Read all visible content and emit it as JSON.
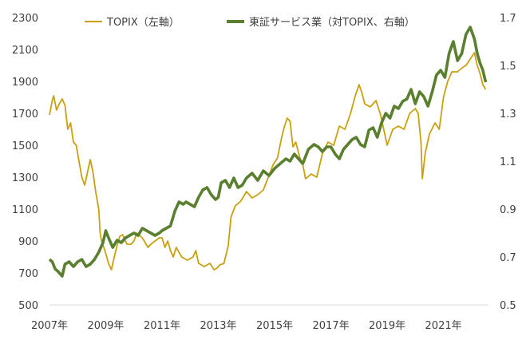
{
  "chart_data": {
    "type": "line",
    "title": "",
    "xlabel": "",
    "colors": {
      "topix": "#C9A010",
      "service": "#5A7F2E",
      "axis": "#D9D9D9",
      "text": "#404040"
    },
    "x_ticks": [
      "2007年",
      "2009年",
      "2011年",
      "2013年",
      "2015年",
      "2017年",
      "2019年",
      "2021年"
    ],
    "x_tick_values": [
      2007,
      2009,
      2011,
      2013,
      2015,
      2017,
      2019,
      2021
    ],
    "xlim": [
      2007,
      2022.6
    ],
    "y_left": {
      "label": "",
      "ticks": [
        "2300",
        "2100",
        "1900",
        "1700",
        "1500",
        "1300",
        "1100",
        "900",
        "700",
        "500"
      ],
      "range": [
        500,
        2300
      ]
    },
    "y_right": {
      "label": "",
      "ticks": [
        "1.7",
        "1.5",
        "1.3",
        "1.1",
        "0.9",
        "0.7",
        "0.5"
      ],
      "range": [
        0.5,
        1.7
      ]
    },
    "legend": {
      "position": "top",
      "entries": [
        "TOPIX（左軸）",
        "東証サービス業（対TOPIX、右軸）"
      ]
    },
    "series": [
      {
        "name": "TOPIX（左軸）",
        "axis": "left",
        "x": [
          2007.0,
          2007.1,
          2007.15,
          2007.25,
          2007.35,
          2007.45,
          2007.55,
          2007.65,
          2007.75,
          2007.85,
          2007.95,
          2008.05,
          2008.15,
          2008.25,
          2008.35,
          2008.45,
          2008.55,
          2008.6,
          2008.65,
          2008.75,
          2008.8,
          2008.85,
          2008.95,
          2009.05,
          2009.1,
          2009.2,
          2009.3,
          2009.4,
          2009.5,
          2009.6,
          2009.75,
          2009.9,
          2010.0,
          2010.1,
          2010.3,
          2010.5,
          2010.6,
          2010.75,
          2010.9,
          2011.0,
          2011.1,
          2011.2,
          2011.3,
          2011.4,
          2011.5,
          2011.6,
          2011.7,
          2011.9,
          2012.1,
          2012.2,
          2012.3,
          2012.5,
          2012.7,
          2012.85,
          2012.95,
          2013.05,
          2013.2,
          2013.35,
          2013.45,
          2013.6,
          2013.8,
          2014.0,
          2014.2,
          2014.4,
          2014.6,
          2014.8,
          2014.95,
          2015.1,
          2015.25,
          2015.35,
          2015.45,
          2015.55,
          2015.65,
          2015.75,
          2015.9,
          2016.0,
          2016.1,
          2016.3,
          2016.5,
          2016.7,
          2016.9,
          2017.1,
          2017.3,
          2017.5,
          2017.7,
          2017.85,
          2018.0,
          2018.1,
          2018.2,
          2018.4,
          2018.6,
          2018.75,
          2018.9,
          2019.0,
          2019.2,
          2019.4,
          2019.6,
          2019.8,
          2020.0,
          2020.1,
          2020.2,
          2020.25,
          2020.35,
          2020.5,
          2020.7,
          2020.85,
          2021.0,
          2021.15,
          2021.3,
          2021.5,
          2021.7,
          2021.8,
          2021.95,
          2022.1,
          2022.2,
          2022.3,
          2022.4,
          2022.5
        ],
        "values": [
          1690,
          1780,
          1810,
          1720,
          1760,
          1790,
          1750,
          1600,
          1640,
          1520,
          1500,
          1400,
          1300,
          1250,
          1330,
          1410,
          1330,
          1260,
          1200,
          1100,
          950,
          900,
          850,
          790,
          760,
          720,
          800,
          870,
          930,
          940,
          880,
          880,
          900,
          950,
          920,
          860,
          880,
          900,
          920,
          920,
          860,
          900,
          840,
          800,
          860,
          830,
          800,
          780,
          800,
          840,
          760,
          740,
          760,
          720,
          730,
          750,
          760,
          870,
          1050,
          1120,
          1150,
          1210,
          1170,
          1190,
          1220,
          1310,
          1380,
          1420,
          1550,
          1620,
          1670,
          1650,
          1490,
          1520,
          1420,
          1380,
          1290,
          1320,
          1300,
          1450,
          1520,
          1500,
          1620,
          1600,
          1700,
          1800,
          1880,
          1830,
          1760,
          1740,
          1780,
          1700,
          1580,
          1500,
          1600,
          1620,
          1600,
          1700,
          1730,
          1700,
          1520,
          1290,
          1450,
          1570,
          1640,
          1600,
          1800,
          1900,
          1960,
          1960,
          1990,
          2000,
          2040,
          2080,
          2000,
          1950,
          1880,
          1850
        ]
      },
      {
        "name": "東証サービス業（対TOPIX、右軸）",
        "axis": "right",
        "x": [
          2007.0,
          2007.1,
          2007.2,
          2007.3,
          2007.45,
          2007.55,
          2007.7,
          2007.85,
          2008.0,
          2008.15,
          2008.3,
          2008.45,
          2008.6,
          2008.75,
          2008.9,
          2009.0,
          2009.1,
          2009.25,
          2009.4,
          2009.55,
          2009.7,
          2009.85,
          2010.0,
          2010.15,
          2010.3,
          2010.45,
          2010.6,
          2010.75,
          2010.9,
          2011.0,
          2011.15,
          2011.3,
          2011.45,
          2011.6,
          2011.75,
          2011.85,
          2012.0,
          2012.15,
          2012.3,
          2012.45,
          2012.6,
          2012.75,
          2012.9,
          2013.0,
          2013.1,
          2013.25,
          2013.4,
          2013.55,
          2013.7,
          2013.85,
          2014.0,
          2014.2,
          2014.4,
          2014.6,
          2014.8,
          2015.0,
          2015.2,
          2015.4,
          2015.55,
          2015.7,
          2015.85,
          2016.0,
          2016.2,
          2016.4,
          2016.55,
          2016.7,
          2016.85,
          2017.0,
          2017.15,
          2017.3,
          2017.45,
          2017.6,
          2017.75,
          2017.9,
          2018.05,
          2018.2,
          2018.35,
          2018.5,
          2018.65,
          2018.8,
          2018.95,
          2019.1,
          2019.25,
          2019.4,
          2019.55,
          2019.7,
          2019.85,
          2020.0,
          2020.15,
          2020.3,
          2020.45,
          2020.6,
          2020.75,
          2020.9,
          2021.05,
          2021.2,
          2021.35,
          2021.5,
          2021.65,
          2021.8,
          2021.95,
          2022.1,
          2022.2,
          2022.3,
          2022.4,
          2022.5
        ],
        "values": [
          0.69,
          0.68,
          0.65,
          0.64,
          0.62,
          0.67,
          0.68,
          0.66,
          0.68,
          0.69,
          0.66,
          0.67,
          0.69,
          0.72,
          0.76,
          0.81,
          0.78,
          0.74,
          0.77,
          0.76,
          0.78,
          0.79,
          0.8,
          0.79,
          0.82,
          0.81,
          0.8,
          0.79,
          0.8,
          0.81,
          0.82,
          0.83,
          0.89,
          0.93,
          0.92,
          0.93,
          0.92,
          0.91,
          0.95,
          0.98,
          0.99,
          0.96,
          0.94,
          0.95,
          1.01,
          1.02,
          0.99,
          1.03,
          0.99,
          1.0,
          1.03,
          1.05,
          1.02,
          1.06,
          1.04,
          1.07,
          1.09,
          1.11,
          1.1,
          1.13,
          1.11,
          1.09,
          1.15,
          1.17,
          1.16,
          1.14,
          1.16,
          1.16,
          1.13,
          1.11,
          1.15,
          1.17,
          1.19,
          1.2,
          1.17,
          1.16,
          1.23,
          1.24,
          1.2,
          1.26,
          1.3,
          1.28,
          1.33,
          1.32,
          1.35,
          1.36,
          1.4,
          1.34,
          1.39,
          1.37,
          1.33,
          1.39,
          1.46,
          1.48,
          1.45,
          1.55,
          1.6,
          1.52,
          1.55,
          1.63,
          1.66,
          1.61,
          1.55,
          1.51,
          1.48,
          1.43
        ]
      }
    ]
  }
}
